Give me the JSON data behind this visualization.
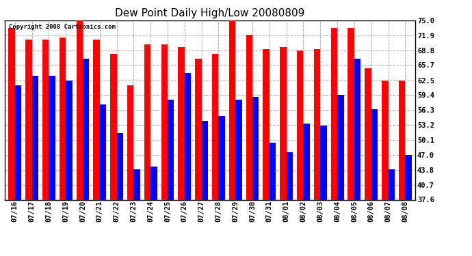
{
  "title": "Dew Point Daily High/Low 20080809",
  "copyright": "Copyright 2008 Cartronics.com",
  "dates": [
    "07/16",
    "07/17",
    "07/18",
    "07/19",
    "07/20",
    "07/21",
    "07/22",
    "07/23",
    "07/24",
    "07/25",
    "07/26",
    "07/27",
    "07/28",
    "07/29",
    "07/30",
    "07/31",
    "08/01",
    "08/02",
    "08/03",
    "08/04",
    "08/05",
    "08/06",
    "08/07",
    "08/08"
  ],
  "highs": [
    73.5,
    71.0,
    71.0,
    71.5,
    76.0,
    71.0,
    68.0,
    61.5,
    70.0,
    70.0,
    69.5,
    67.0,
    68.0,
    75.0,
    72.0,
    69.0,
    69.5,
    68.8,
    69.0,
    73.5,
    73.5,
    65.0,
    62.5,
    62.5
  ],
  "lows": [
    61.5,
    63.5,
    63.5,
    62.5,
    67.0,
    57.5,
    51.5,
    44.0,
    44.5,
    58.5,
    64.0,
    54.0,
    55.0,
    58.5,
    59.0,
    49.5,
    47.5,
    53.5,
    53.0,
    59.5,
    67.0,
    56.5,
    44.0,
    47.0
  ],
  "high_color": "#ff0000",
  "low_color": "#0000ff",
  "bg_color": "#ffffff",
  "grid_color": "#aaaaaa",
  "ymin": 37.6,
  "ymax": 75.0,
  "yticks": [
    37.6,
    40.7,
    43.8,
    47.0,
    50.1,
    53.2,
    56.3,
    59.4,
    62.5,
    65.7,
    68.8,
    71.9,
    75.0
  ],
  "bar_width": 0.38,
  "title_fontsize": 11,
  "tick_fontsize": 7.5,
  "copyright_fontsize": 6.5
}
